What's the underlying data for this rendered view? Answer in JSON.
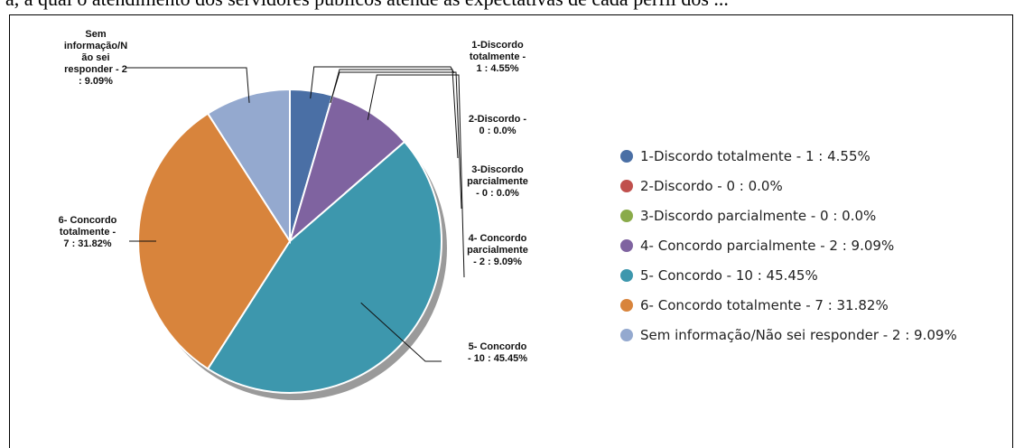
{
  "context_text": "ã, a qual o atendimento dos servidores públicos atende às expectativas de cada perfil dos ...",
  "chart_data": {
    "type": "pie",
    "slices": [
      {
        "name": "1-Discordo totalmente ",
        "count": 1,
        "percent": 4.55,
        "color": "#4a6fa5",
        "label_lines": [
          "1-Discordo",
          "totalmente  -",
          "1 : 4.55%"
        ],
        "legend": "1-Discordo totalmente  - 1 : 4.55%"
      },
      {
        "name": "2-Discordo",
        "count": 0,
        "percent": 0.0,
        "color": "#c0504d",
        "label_lines": [
          "2-Discordo -",
          "0 : 0.0%"
        ],
        "legend": "2-Discordo - 0 : 0.0%"
      },
      {
        "name": "3-Discordo parcialmente ",
        "count": 0,
        "percent": 0.0,
        "color": "#8aab4a",
        "label_lines": [
          "3-Discordo",
          "parcialmente",
          "- 0 : 0.0%"
        ],
        "legend": "3-Discordo parcialmente  - 0 : 0.0%"
      },
      {
        "name": "4- Concordo parcialmente ",
        "count": 2,
        "percent": 9.09,
        "color": "#7f63a0",
        "label_lines": [
          "4- Concordo",
          "parcialmente",
          "- 2 : 9.09%"
        ],
        "legend": "4- Concordo parcialmente  - 2 : 9.09%"
      },
      {
        "name": "5- Concordo",
        "count": 10,
        "percent": 45.45,
        "color": "#3d97ad",
        "label_lines": [
          "5- Concordo",
          "- 10 : 45.45%"
        ],
        "legend": "5- Concordo - 10 : 45.45%"
      },
      {
        "name": "6- Concordo totalmente ",
        "count": 7,
        "percent": 31.82,
        "color": "#d8843c",
        "label_lines": [
          "6- Concordo",
          "totalmente  -",
          "7 : 31.82%"
        ],
        "legend": "6- Concordo totalmente  - 7 : 31.82%"
      },
      {
        "name": "Sem informação/Não sei responder",
        "count": 2,
        "percent": 9.09,
        "color": "#94a9cf",
        "label_lines": [
          "Sem",
          "informação/N",
          "ão sei",
          "responder - 2",
          ": 9.09%"
        ],
        "legend": "Sem informação/Não sei responder - 2 : 9.09%"
      }
    ],
    "legend_placement": "right"
  }
}
